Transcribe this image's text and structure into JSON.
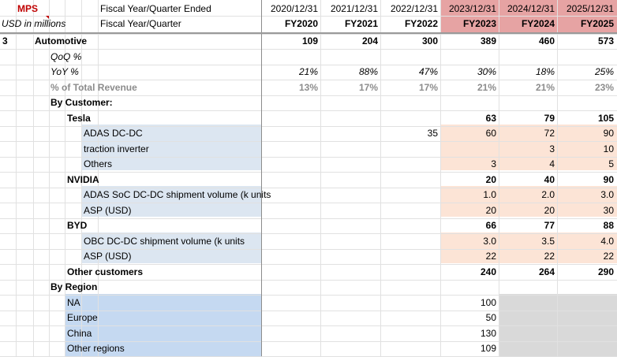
{
  "header": {
    "ticker": "MPS",
    "units": "USD in millions",
    "fiscal_year_quarter_ended": "Fiscal Year/Quarter Ended",
    "fiscal_year_quarter": "Fiscal Year/Quarter",
    "dates": [
      "2020/12/31",
      "2021/12/31",
      "2022/12/31",
      "2023/12/31",
      "2024/12/31",
      "2025/12/31"
    ],
    "years": [
      "FY2020",
      "FY2021",
      "FY2022",
      "FY2023",
      "FY2024",
      "FY2025"
    ]
  },
  "colors": {
    "ticker": "#c00000",
    "forecast_header": "#e6a3a3",
    "detail_blue": "#dce6f1",
    "region_blue": "#c5d9f1",
    "forecast_fill": "#fce4d6",
    "gray_fill": "#d9d9d9"
  },
  "rows": [
    {
      "a": "3",
      "label": "Automotive",
      "vals": [
        "109",
        "204",
        "300",
        "389",
        "460",
        "573"
      ]
    },
    {
      "label": "QoQ %",
      "vals": [
        "",
        "",
        "",
        "",
        "",
        ""
      ]
    },
    {
      "label": "YoY %",
      "vals": [
        "21%",
        "88%",
        "47%",
        "30%",
        "18%",
        "25%"
      ]
    },
    {
      "label": "% of Total Revenue",
      "vals": [
        "13%",
        "17%",
        "17%",
        "21%",
        "21%",
        "23%"
      ]
    },
    {
      "label": "By Customer:",
      "vals": [
        "",
        "",
        "",
        "",
        "",
        ""
      ]
    },
    {
      "label": "Tesla",
      "vals": [
        "",
        "",
        "",
        "63",
        "79",
        "105"
      ]
    },
    {
      "label": "ADAS DC-DC",
      "vals": [
        "",
        "",
        "35",
        "60",
        "72",
        "90"
      ]
    },
    {
      "label": "traction inverter",
      "vals": [
        "",
        "",
        "",
        "",
        "3",
        "10"
      ]
    },
    {
      "label": "Others",
      "vals": [
        "",
        "",
        "",
        "3",
        "4",
        "5"
      ]
    },
    {
      "label": "NVIDIA",
      "vals": [
        "",
        "",
        "",
        "20",
        "40",
        "90"
      ]
    },
    {
      "label": "ADAS SoC DC-DC shipment volume (k units",
      "vals": [
        "",
        "",
        "",
        "1.0",
        "2.0",
        "3.0"
      ]
    },
    {
      "label": "ASP (USD)",
      "vals": [
        "",
        "",
        "",
        "20",
        "20",
        "30"
      ]
    },
    {
      "label": "BYD",
      "vals": [
        "",
        "",
        "",
        "66",
        "77",
        "88"
      ]
    },
    {
      "label": "OBC DC-DC shipment volume (k units",
      "vals": [
        "",
        "",
        "",
        "3.0",
        "3.5",
        "4.0"
      ]
    },
    {
      "label": "ASP (USD)",
      "vals": [
        "",
        "",
        "",
        "22",
        "22",
        "22"
      ]
    },
    {
      "label": "Other customers",
      "vals": [
        "",
        "",
        "",
        "240",
        "264",
        "290"
      ]
    },
    {
      "label": "By Region",
      "vals": [
        "",
        "",
        "",
        "",
        "",
        ""
      ]
    },
    {
      "label": "NA",
      "vals": [
        "",
        "",
        "",
        "100",
        "",
        ""
      ]
    },
    {
      "label": "Europe",
      "vals": [
        "",
        "",
        "",
        "50",
        "",
        ""
      ]
    },
    {
      "label": "China",
      "vals": [
        "",
        "",
        "",
        "130",
        "",
        ""
      ]
    },
    {
      "label": "Other regions",
      "vals": [
        "",
        "",
        "",
        "109",
        "",
        ""
      ]
    }
  ]
}
